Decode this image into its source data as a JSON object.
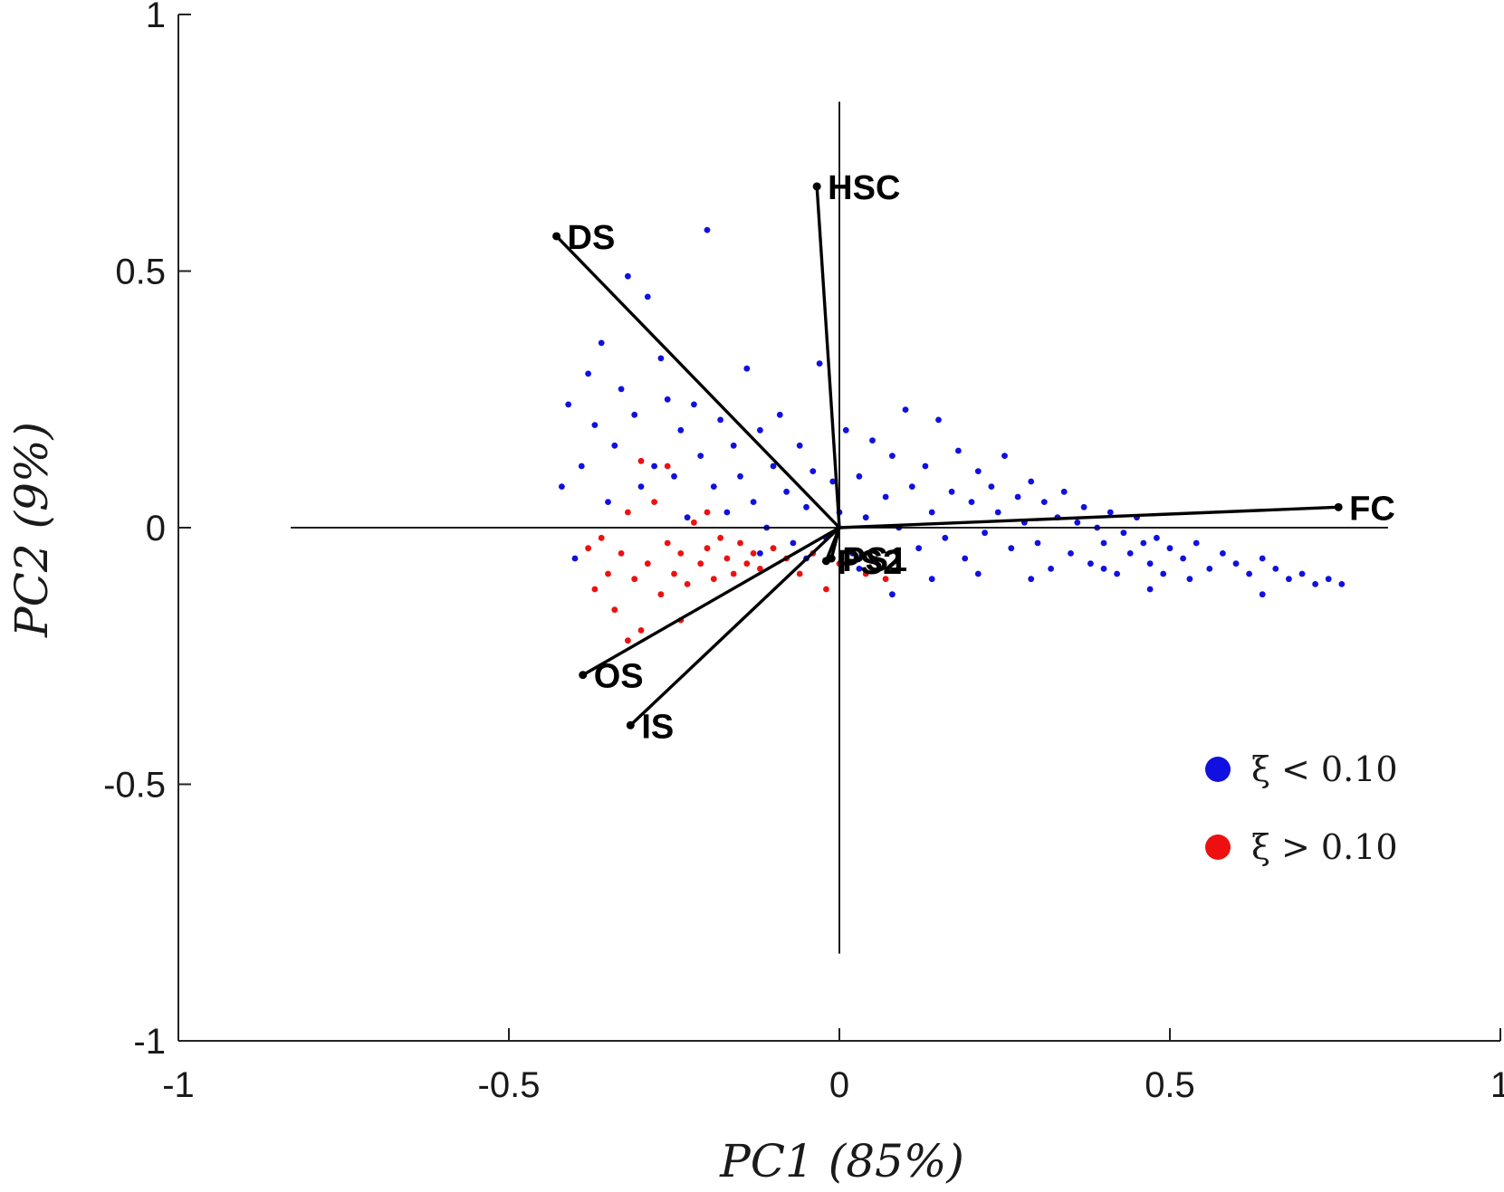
{
  "chart_data": {
    "type": "scatter",
    "subtype": "pca-biplot",
    "title": "",
    "xlabel": "PC1 (85%)",
    "ylabel": "PC2 (9%)",
    "xlim": [
      -1,
      1
    ],
    "ylim": [
      -1,
      1
    ],
    "xticks": [
      -1,
      -0.5,
      0,
      0.5,
      1
    ],
    "xtick_labels": [
      "-1",
      "-0.5",
      "0",
      "0.5",
      "1"
    ],
    "yticks": [
      -1,
      -0.5,
      0,
      0.5,
      1
    ],
    "ytick_labels": [
      "-1",
      "-0.5",
      "0",
      "0.5",
      "1"
    ],
    "grid": false,
    "legend_position": "bottom-right",
    "reference_lines": {
      "horizontal_x_range": [
        -0.83,
        0.83
      ],
      "vertical_y_range": [
        -0.83,
        0.83
      ]
    },
    "loadings": [
      {
        "label": "HSC",
        "x": -0.034,
        "y": 0.665
      },
      {
        "label": "DS",
        "x": -0.428,
        "y": 0.568
      },
      {
        "label": "FC",
        "x": 0.755,
        "y": 0.04
      },
      {
        "label": "PS1",
        "x": -0.012,
        "y": -0.06
      },
      {
        "label": "PS2",
        "x": -0.02,
        "y": -0.065
      },
      {
        "label": "OS",
        "x": -0.388,
        "y": -0.287
      },
      {
        "label": "IS",
        "x": -0.316,
        "y": -0.385
      }
    ],
    "series": [
      {
        "name": "ξ < 0.10",
        "color": "#1010e0",
        "distribution": "cloud from x≈-0.43 to x≈0.76, centre ≈(0.1, 0.0), spreading up-left toward DS and tapering right toward FC",
        "points": [
          [
            -0.42,
            0.08
          ],
          [
            -0.41,
            0.24
          ],
          [
            -0.4,
            -0.06
          ],
          [
            -0.39,
            0.12
          ],
          [
            -0.38,
            0.3
          ],
          [
            -0.37,
            0.2
          ],
          [
            -0.36,
            0.36
          ],
          [
            -0.35,
            0.05
          ],
          [
            -0.34,
            0.16
          ],
          [
            -0.33,
            0.27
          ],
          [
            -0.32,
            0.49
          ],
          [
            -0.31,
            0.22
          ],
          [
            -0.3,
            0.08
          ],
          [
            -0.29,
            0.45
          ],
          [
            -0.28,
            0.12
          ],
          [
            -0.27,
            0.33
          ],
          [
            -0.26,
            0.25
          ],
          [
            -0.25,
            0.1
          ],
          [
            -0.24,
            0.19
          ],
          [
            -0.23,
            0.02
          ],
          [
            -0.22,
            0.24
          ],
          [
            -0.21,
            0.14
          ],
          [
            -0.2,
            0.58
          ],
          [
            -0.19,
            0.08
          ],
          [
            -0.18,
            0.21
          ],
          [
            -0.17,
            0.03
          ],
          [
            -0.16,
            0.16
          ],
          [
            -0.15,
            0.1
          ],
          [
            -0.14,
            0.31
          ],
          [
            -0.13,
            0.05
          ],
          [
            -0.12,
            0.19
          ],
          [
            -0.11,
            0.0
          ],
          [
            -0.1,
            0.12
          ],
          [
            -0.09,
            0.22
          ],
          [
            -0.08,
            0.07
          ],
          [
            -0.07,
            -0.03
          ],
          [
            -0.06,
            0.16
          ],
          [
            -0.05,
            0.04
          ],
          [
            -0.04,
            0.11
          ],
          [
            -0.03,
            0.32
          ],
          [
            -0.02,
            -0.02
          ],
          [
            -0.01,
            0.09
          ],
          [
            0.0,
            0.03
          ],
          [
            0.01,
            0.19
          ],
          [
            0.02,
            -0.05
          ],
          [
            0.03,
            0.1
          ],
          [
            0.04,
            0.02
          ],
          [
            0.05,
            0.17
          ],
          [
            0.06,
            -0.08
          ],
          [
            0.07,
            0.06
          ],
          [
            0.08,
            0.14
          ],
          [
            0.09,
            0.0
          ],
          [
            0.1,
            0.23
          ],
          [
            0.11,
            0.08
          ],
          [
            0.12,
            -0.04
          ],
          [
            0.13,
            0.12
          ],
          [
            0.14,
            0.03
          ],
          [
            0.15,
            0.21
          ],
          [
            0.16,
            -0.02
          ],
          [
            0.17,
            0.07
          ],
          [
            0.18,
            0.15
          ],
          [
            0.19,
            -0.06
          ],
          [
            0.2,
            0.05
          ],
          [
            0.21,
            0.11
          ],
          [
            0.22,
            -0.01
          ],
          [
            0.23,
            0.08
          ],
          [
            0.24,
            0.03
          ],
          [
            0.25,
            0.14
          ],
          [
            0.26,
            -0.04
          ],
          [
            0.27,
            0.06
          ],
          [
            0.28,
            0.01
          ],
          [
            0.29,
            0.09
          ],
          [
            0.3,
            -0.03
          ],
          [
            0.31,
            0.05
          ],
          [
            0.32,
            -0.08
          ],
          [
            0.33,
            0.02
          ],
          [
            0.34,
            0.07
          ],
          [
            0.35,
            -0.05
          ],
          [
            0.36,
            0.01
          ],
          [
            0.37,
            0.04
          ],
          [
            0.38,
            -0.07
          ],
          [
            0.39,
            0.0
          ],
          [
            0.4,
            -0.03
          ],
          [
            0.41,
            0.03
          ],
          [
            0.42,
            -0.09
          ],
          [
            0.43,
            -0.01
          ],
          [
            0.44,
            -0.05
          ],
          [
            0.45,
            0.02
          ],
          [
            0.46,
            -0.03
          ],
          [
            0.47,
            -0.07
          ],
          [
            0.48,
            -0.02
          ],
          [
            0.49,
            -0.09
          ],
          [
            0.5,
            -0.04
          ],
          [
            0.52,
            -0.06
          ],
          [
            0.54,
            -0.03
          ],
          [
            0.56,
            -0.08
          ],
          [
            0.58,
            -0.05
          ],
          [
            0.6,
            -0.07
          ],
          [
            0.62,
            -0.09
          ],
          [
            0.64,
            -0.06
          ],
          [
            0.66,
            -0.08
          ],
          [
            0.68,
            -0.1
          ],
          [
            0.7,
            -0.09
          ],
          [
            0.72,
            -0.11
          ],
          [
            0.74,
            -0.1
          ],
          [
            0.76,
            -0.11
          ],
          [
            0.64,
            -0.13
          ],
          [
            0.53,
            -0.1
          ],
          [
            0.47,
            -0.12
          ],
          [
            0.4,
            -0.08
          ],
          [
            0.29,
            -0.1
          ],
          [
            0.21,
            -0.09
          ],
          [
            0.14,
            -0.1
          ],
          [
            0.08,
            -0.13
          ],
          [
            0.03,
            -0.08
          ],
          [
            -0.05,
            -0.06
          ],
          [
            -0.12,
            -0.05
          ]
        ]
      },
      {
        "name": "ξ > 0.10",
        "color": "#ee1010",
        "distribution": "dense cluster centred at ≈(-0.22, -0.06), spanning x≈-0.38 to 0.08 and y≈-0.22 to 0.13",
        "points": [
          [
            -0.38,
            -0.04
          ],
          [
            -0.37,
            -0.12
          ],
          [
            -0.36,
            -0.02
          ],
          [
            -0.35,
            -0.09
          ],
          [
            -0.34,
            -0.16
          ],
          [
            -0.33,
            -0.05
          ],
          [
            -0.32,
            0.03
          ],
          [
            -0.31,
            -0.1
          ],
          [
            -0.3,
            -0.2
          ],
          [
            -0.29,
            -0.07
          ],
          [
            -0.28,
            0.05
          ],
          [
            -0.27,
            -0.13
          ],
          [
            -0.26,
            -0.03
          ],
          [
            -0.25,
            -0.09
          ],
          [
            -0.24,
            -0.05
          ],
          [
            -0.23,
            -0.11
          ],
          [
            -0.22,
            0.01
          ],
          [
            -0.21,
            -0.07
          ],
          [
            -0.2,
            -0.04
          ],
          [
            -0.19,
            -0.1
          ],
          [
            -0.18,
            -0.02
          ],
          [
            -0.17,
            -0.06
          ],
          [
            -0.16,
            -0.09
          ],
          [
            -0.15,
            -0.03
          ],
          [
            -0.14,
            -0.07
          ],
          [
            -0.13,
            -0.05
          ],
          [
            -0.12,
            -0.08
          ],
          [
            -0.1,
            -0.04
          ],
          [
            -0.08,
            -0.06
          ],
          [
            -0.06,
            -0.09
          ],
          [
            -0.04,
            -0.05
          ],
          [
            -0.02,
            -0.12
          ],
          [
            0.0,
            -0.07
          ],
          [
            0.04,
            -0.09
          ],
          [
            0.07,
            -0.1
          ],
          [
            -0.3,
            0.13
          ],
          [
            -0.26,
            0.12
          ],
          [
            -0.24,
            -0.18
          ],
          [
            -0.32,
            -0.22
          ],
          [
            -0.2,
            0.03
          ]
        ]
      }
    ]
  }
}
